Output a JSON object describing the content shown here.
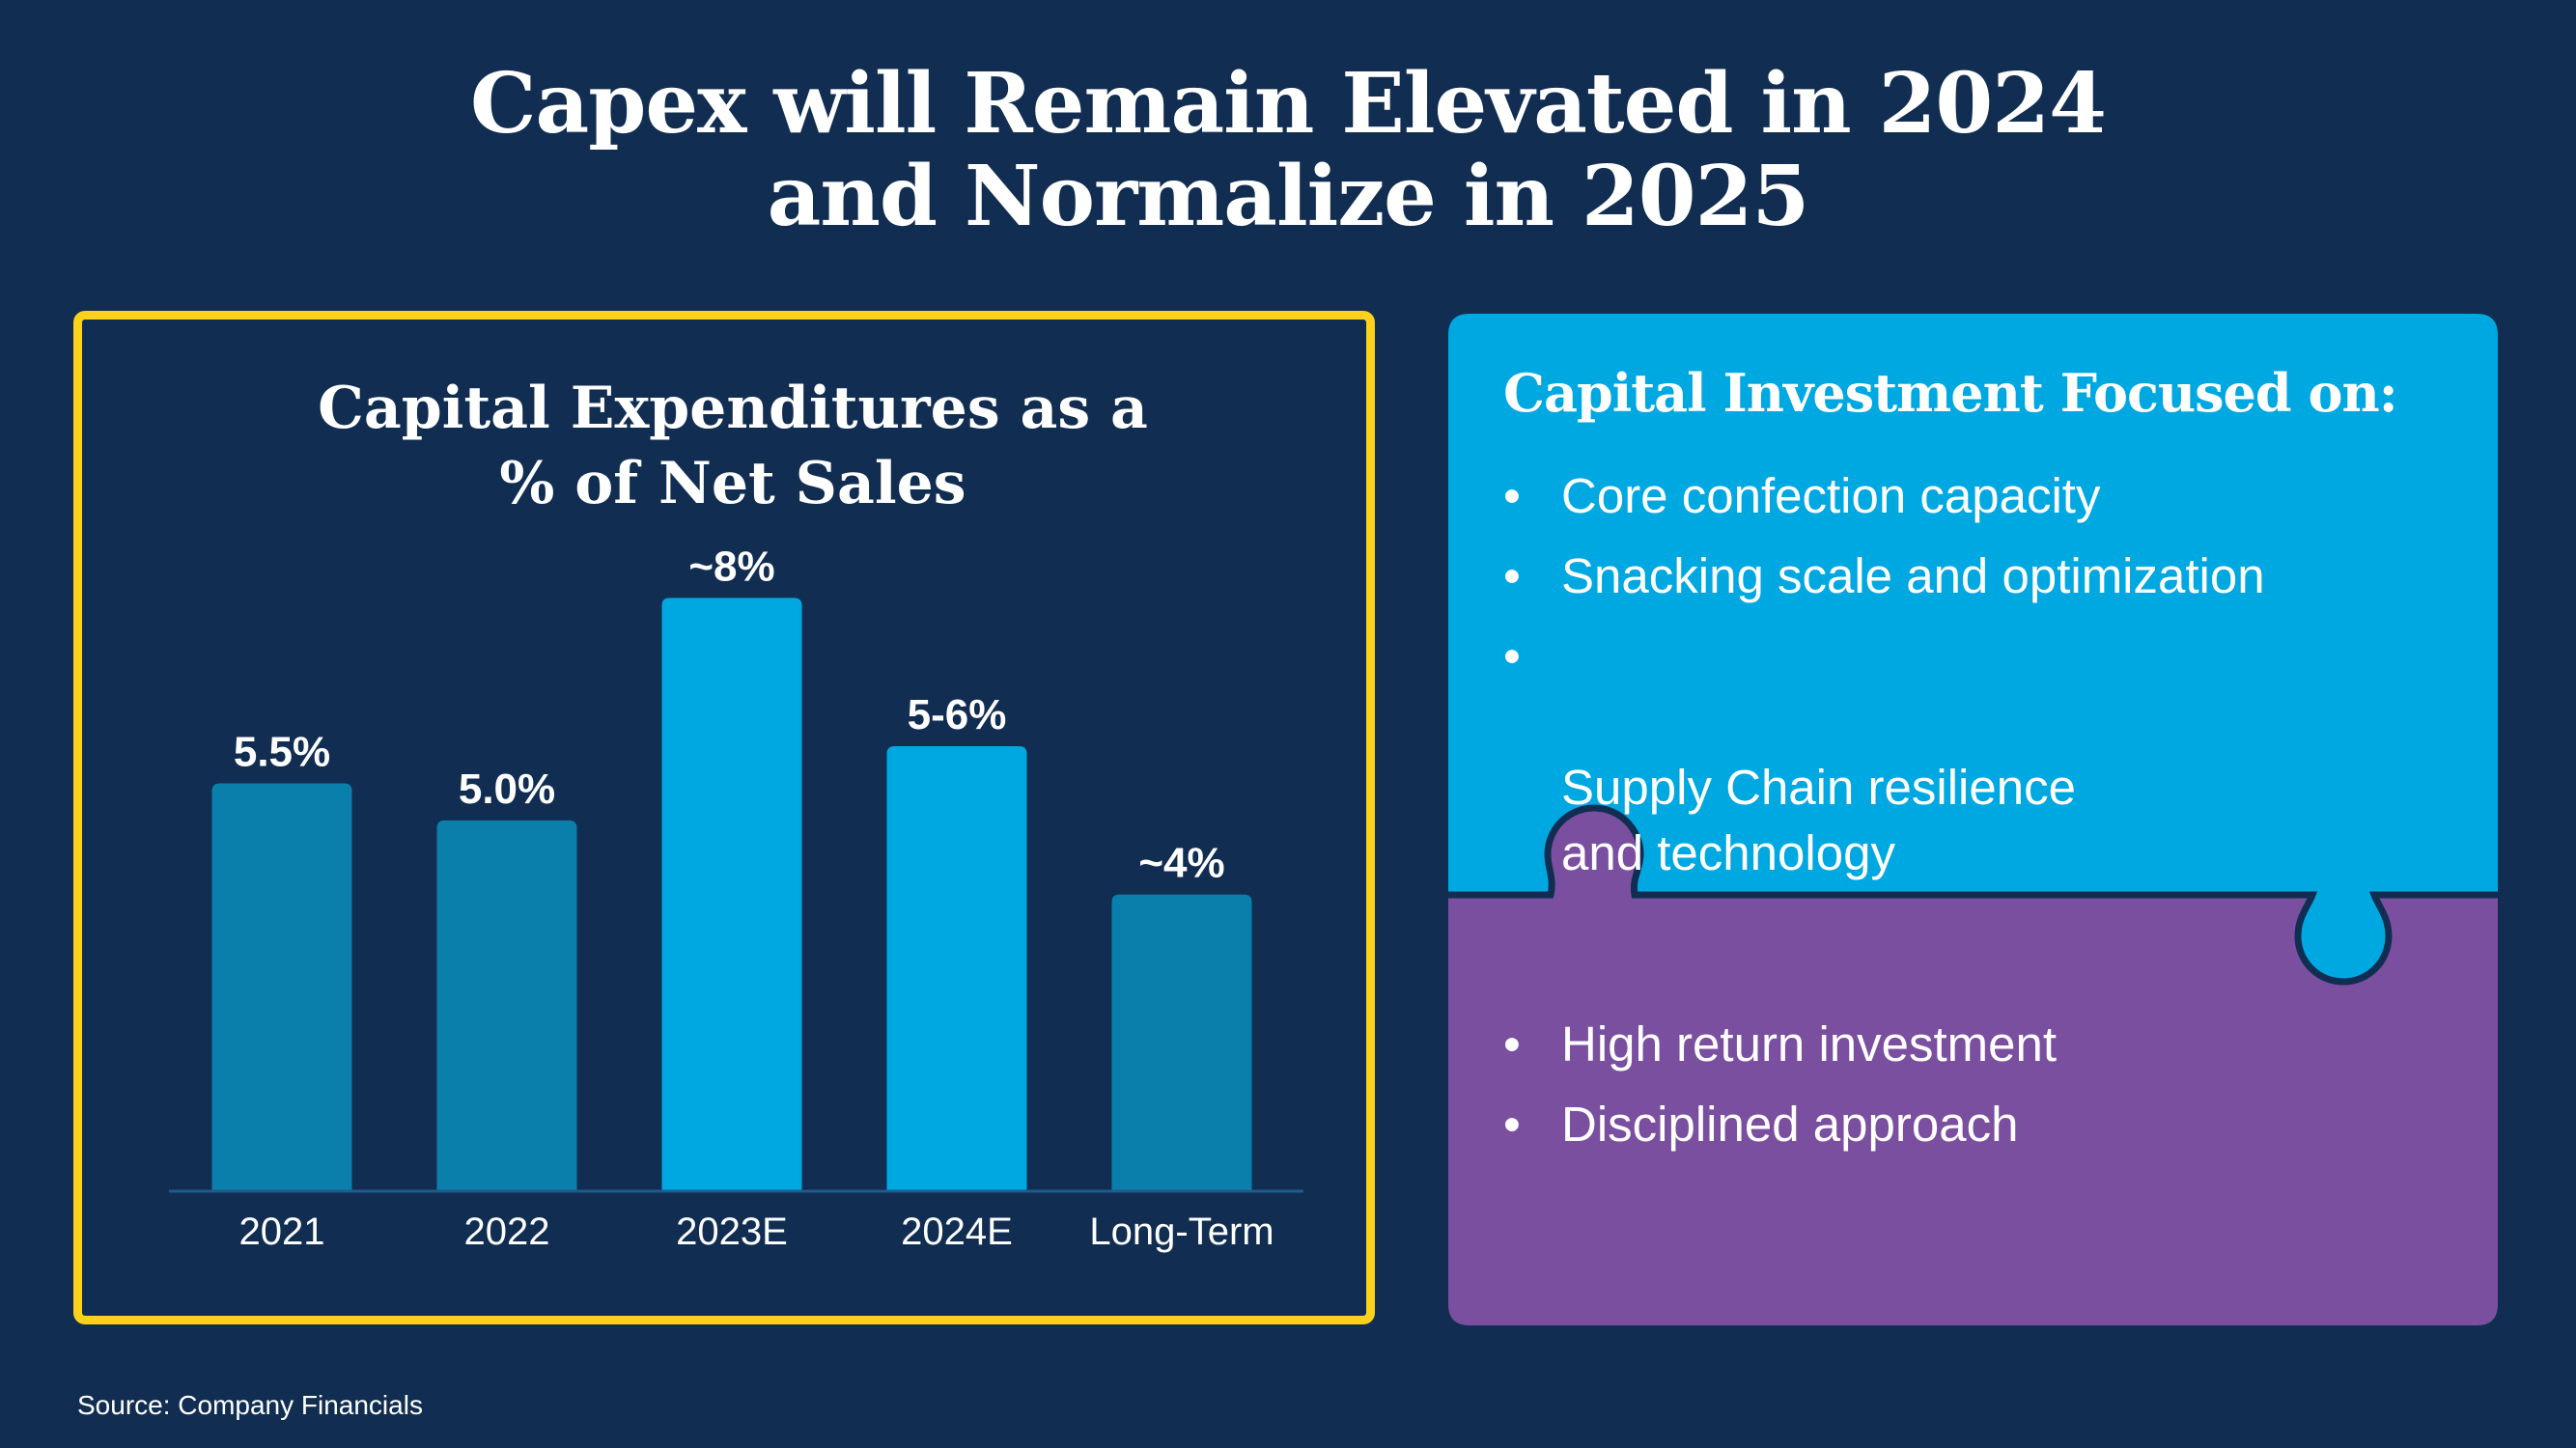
{
  "title": {
    "line1": "Capex will Remain Elevated in 2024",
    "line2": "and Normalize in 2025"
  },
  "colors": {
    "background": "#112e52",
    "frame": "#fbd11a",
    "bar_dark": "#0a7fab",
    "bar_light": "#00a8e1",
    "puzzle_top": "#00a8e1",
    "puzzle_bottom": "#7b4f9f"
  },
  "chart_data": {
    "type": "bar",
    "title": "Capital Expenditures as a % of Net Sales",
    "title_lines": [
      "Capital Expenditures as a",
      "% of Net Sales"
    ],
    "categories": [
      "2021",
      "2022",
      "2023E",
      "2024E",
      "Long-Term"
    ],
    "values": [
      5.5,
      5.0,
      8.0,
      6.0,
      4.0
    ],
    "data_labels": [
      "5.5%",
      "5.0%",
      "~8%",
      "5-6%",
      "~4%"
    ],
    "highlighted": [
      false,
      false,
      true,
      true,
      false
    ],
    "xlabel": "",
    "ylabel": "",
    "ylim": [
      0,
      8.2
    ],
    "grid": false,
    "legend": "none"
  },
  "focus": {
    "heading": "Capital Investment Focused on:",
    "bullet_symbol": "•",
    "top_items": [
      "Core confection capacity",
      "Snacking scale and optimization",
      "Supply Chain resilience\nand technology"
    ],
    "bottom_items": [
      "High return investment",
      "Disciplined approach"
    ]
  },
  "source": "Source:  Company Financials"
}
